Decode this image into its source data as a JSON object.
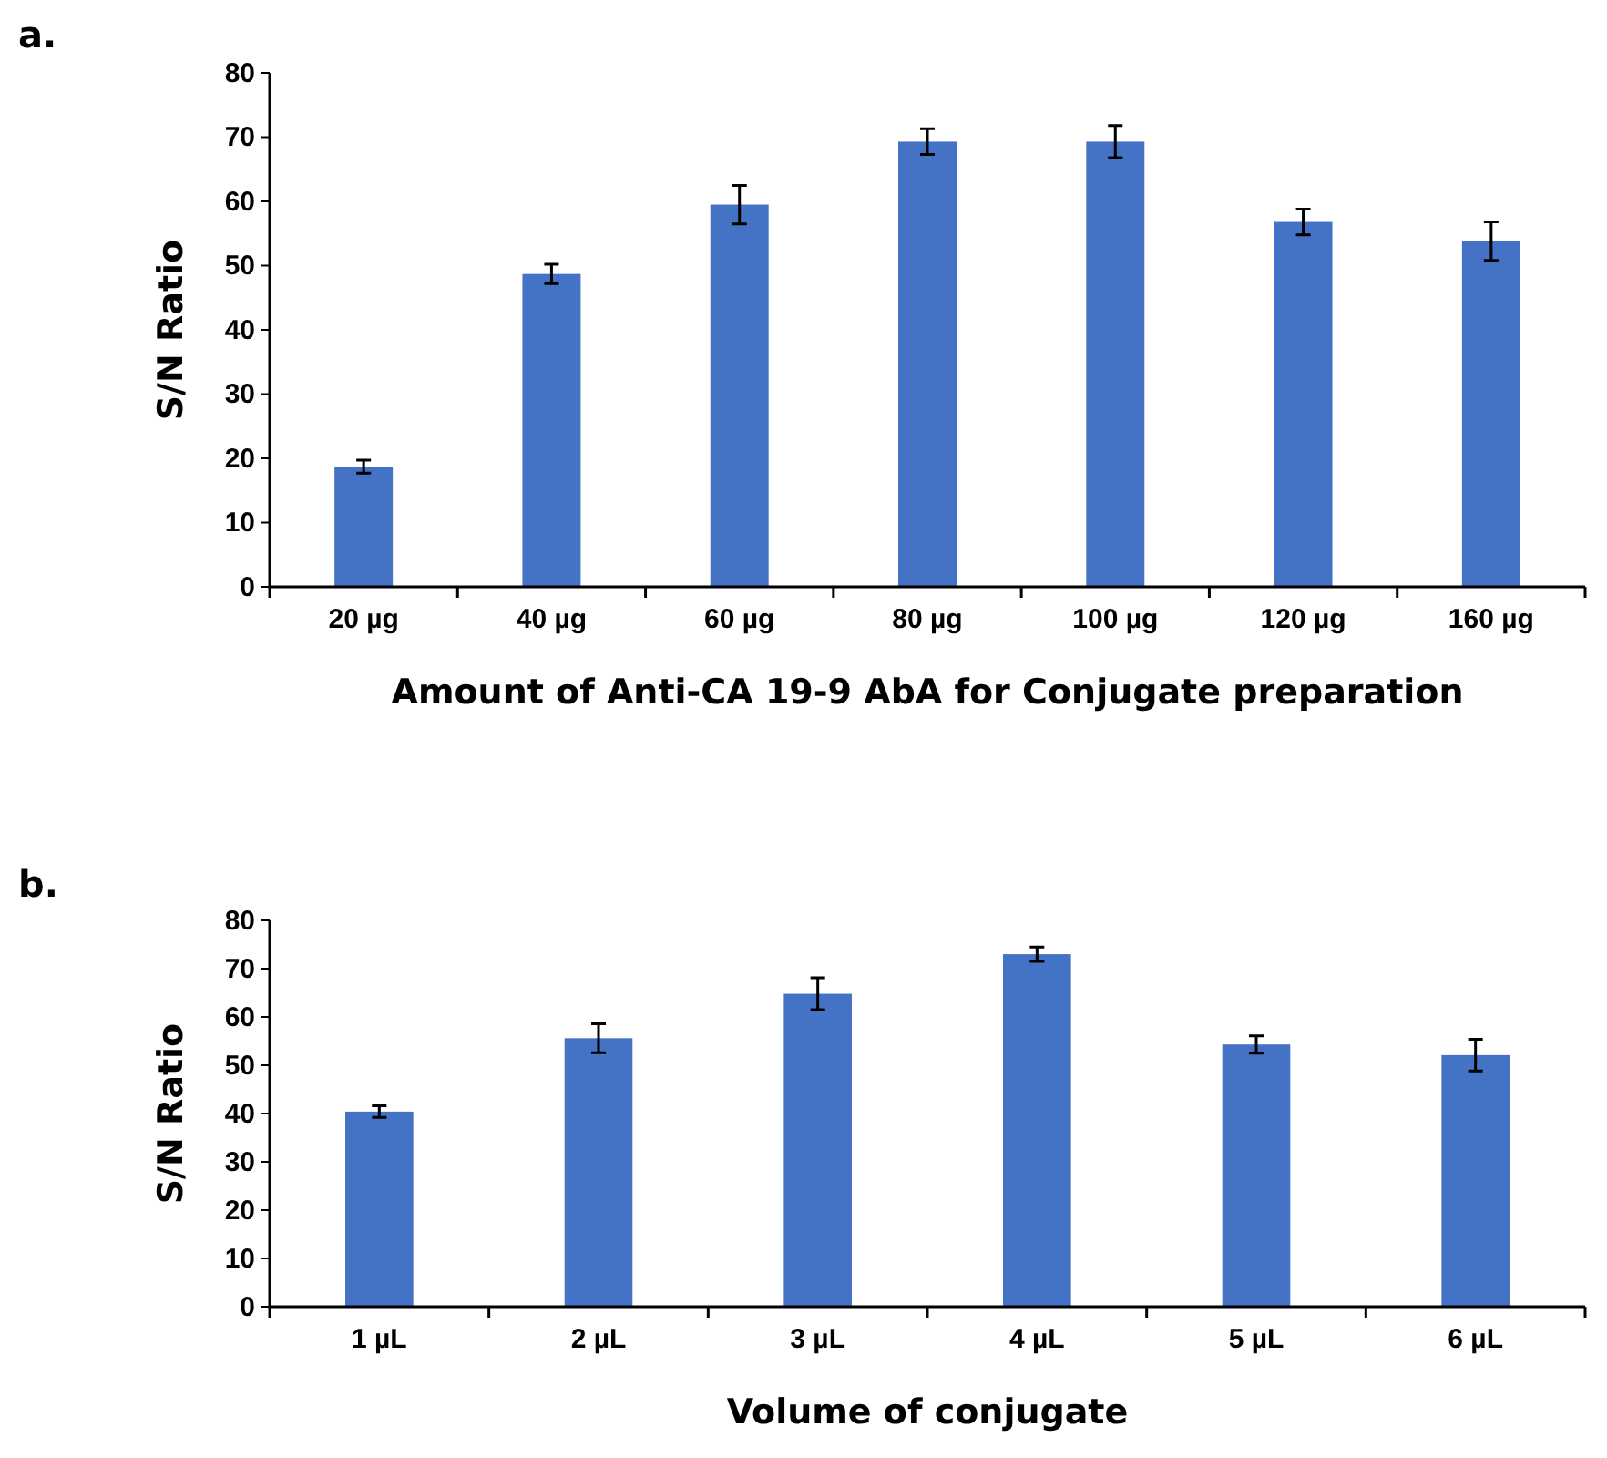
{
  "chart_data": [
    {
      "type": "bar",
      "title": "a.",
      "xlabel": "Amount of Anti-CA 19-9 AbA for Conjugate preparation",
      "ylabel": "S/N Ratio",
      "categories": [
        "20 µg",
        "40 µg",
        "60 µg",
        "80 µg",
        "100 µg",
        "120 µg",
        "160 µg"
      ],
      "values": [
        18.7,
        48.7,
        59.5,
        69.3,
        69.3,
        56.8,
        53.8
      ],
      "errors": [
        1,
        1.5,
        3,
        2,
        2.5,
        2,
        3
      ],
      "color": "#4472c4",
      "ylim": [
        0,
        80
      ],
      "yticks": [
        0,
        10,
        20,
        30,
        40,
        50,
        60,
        70,
        80
      ]
    },
    {
      "type": "bar",
      "title": "b.",
      "xlabel": "Volume of conjugate",
      "ylabel": "S/N Ratio",
      "categories": [
        "1 µL",
        "2 µL",
        "3 µL",
        "4 µL",
        "5 µL",
        "6 µL"
      ],
      "values": [
        40.4,
        55.6,
        64.8,
        73,
        54.3,
        52.1
      ],
      "errors": [
        1.2,
        3,
        3.3,
        1.5,
        1.8,
        3.3
      ],
      "color": "#4472c4",
      "ylim": [
        0,
        80
      ],
      "yticks": [
        0,
        10,
        20,
        30,
        40,
        50,
        60,
        70,
        80
      ]
    }
  ]
}
